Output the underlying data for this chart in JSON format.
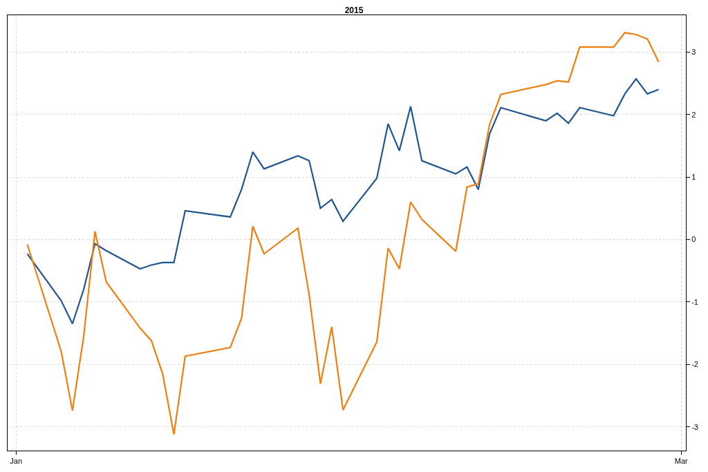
{
  "chart_data": {
    "type": "line",
    "title": "2015",
    "x": [
      "2015-01-02",
      "2015-01-05",
      "2015-01-06",
      "2015-01-07",
      "2015-01-08",
      "2015-01-09",
      "2015-01-12",
      "2015-01-13",
      "2015-01-14",
      "2015-01-15",
      "2015-01-16",
      "2015-01-20",
      "2015-01-21",
      "2015-01-22",
      "2015-01-23",
      "2015-01-26",
      "2015-01-27",
      "2015-01-28",
      "2015-01-29",
      "2015-01-30",
      "2015-02-02",
      "2015-02-03",
      "2015-02-04",
      "2015-02-05",
      "2015-02-06",
      "2015-02-09",
      "2015-02-10",
      "2015-02-11",
      "2015-02-12",
      "2015-02-13",
      "2015-02-17",
      "2015-02-18",
      "2015-02-19",
      "2015-02-20",
      "2015-02-23",
      "2015-02-24",
      "2015-02-25",
      "2015-02-26",
      "2015-02-27"
    ],
    "series": [
      {
        "color": "#1f5591",
        "values": [
          -0.23,
          -0.98,
          -1.35,
          -0.8,
          -0.07,
          -0.18,
          -0.47,
          -0.41,
          -0.37,
          -0.37,
          0.46,
          0.36,
          0.8,
          1.4,
          1.13,
          1.34,
          1.26,
          0.5,
          0.64,
          0.29,
          0.98,
          1.85,
          1.42,
          2.13,
          1.26,
          1.05,
          1.16,
          0.8,
          1.69,
          2.11,
          1.9,
          2.02,
          1.86,
          2.11,
          1.98,
          2.33,
          2.57,
          2.33,
          2.4
        ]
      },
      {
        "color": "#f07f0f",
        "values": [
          -0.08,
          -1.79,
          -2.74,
          -1.55,
          0.13,
          -0.68,
          -1.42,
          -1.62,
          -2.15,
          -3.12,
          -1.87,
          -1.73,
          -1.26,
          0.21,
          -0.23,
          0.18,
          -0.89,
          -2.31,
          -1.4,
          -2.73,
          -1.64,
          -0.14,
          -0.47,
          0.6,
          0.32,
          -0.19,
          0.84,
          0.89,
          1.84,
          2.32,
          2.48,
          2.54,
          2.52,
          3.08,
          3.08,
          3.31,
          3.28,
          3.21,
          2.84
        ]
      }
    ],
    "xlim": [
      "2014-12-31T06:00",
      "2015-03-01T10:00"
    ],
    "xticks": [
      {
        "value": "2015-01-01",
        "label": "Jan"
      },
      {
        "value": "2015-03-01",
        "label": "Mar"
      }
    ],
    "ylim": [
      -3.38,
      3.59
    ],
    "yticks": [
      -3,
      -2,
      -1,
      0,
      1,
      2,
      3
    ],
    "grid": true,
    "line_style": "solid",
    "marker": "none"
  }
}
